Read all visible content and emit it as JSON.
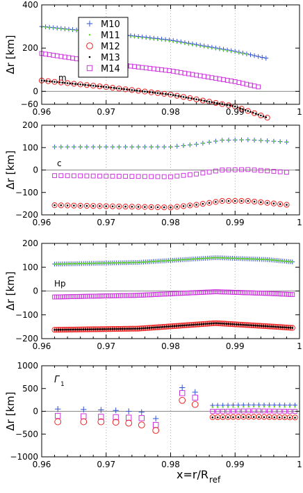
{
  "chart_data": [
    {
      "type": "scatter",
      "panel_label": "m",
      "xlabel_main": "x=r/R",
      "xlabel_sub": "ref",
      "ylabel": "Δr [km]",
      "xlim": [
        0.96,
        1.0
      ],
      "ylim": [
        -60,
        400
      ],
      "x_ticks": [
        "0.96",
        "0.97",
        "0.98",
        "0.99",
        "1"
      ],
      "y_ticks": [
        "−60",
        "0",
        "200",
        "400"
      ],
      "y_tick_values": [
        -60,
        0,
        200,
        400
      ],
      "grid": "dotted at major x ticks",
      "legend": [
        "M10",
        "M11",
        "M12",
        "M13",
        "M14"
      ],
      "legend_position": "top-left",
      "series": [
        {
          "name": "M10",
          "x_range": [
            0.96,
            0.995
          ],
          "x_step": 0.0006,
          "y": [
            [
              0.96,
              300
            ],
            [
              0.97,
              270
            ],
            [
              0.98,
              237
            ],
            [
              0.99,
              185
            ],
            [
              0.995,
              152
            ]
          ]
        },
        {
          "name": "M11",
          "x_range": [
            0.96,
            0.992
          ],
          "x_step": 0.0006,
          "y": [
            [
              0.96,
              298
            ],
            [
              0.97,
              266
            ],
            [
              0.98,
              232
            ],
            [
              0.99,
              181
            ],
            [
              0.992,
              170
            ]
          ]
        },
        {
          "name": "M12",
          "x_range": [
            0.96,
            0.995
          ],
          "x_step": 0.001,
          "y": [
            [
              0.96,
              50
            ],
            [
              0.97,
              20
            ],
            [
              0.98,
              -15
            ],
            [
              0.99,
              -70
            ],
            [
              0.995,
              -122
            ]
          ]
        },
        {
          "name": "M13",
          "x_range": [
            0.96,
            0.995
          ],
          "x_step": 0.0004,
          "y": [
            [
              0.96,
              50
            ],
            [
              0.97,
              20
            ],
            [
              0.98,
              -15
            ],
            [
              0.99,
              -70
            ],
            [
              0.995,
              -122
            ]
          ]
        },
        {
          "name": "M14",
          "x_range": [
            0.96,
            0.994
          ],
          "x_step": 0.0006,
          "y": [
            [
              0.96,
              175
            ],
            [
              0.97,
              130
            ],
            [
              0.98,
              95
            ],
            [
              0.99,
              45
            ],
            [
              0.994,
              18
            ]
          ]
        }
      ]
    },
    {
      "type": "scatter",
      "panel_label": "c",
      "xlabel_main": "x=r/R",
      "xlabel_sub": "ref",
      "ylabel": "Δr [km]",
      "xlim": [
        0.96,
        1.0
      ],
      "ylim": [
        -200,
        200
      ],
      "x_ticks": [
        "0.96",
        "0.97",
        "0.98",
        "0.99",
        "1"
      ],
      "y_ticks": [
        "−200",
        "−100",
        "0",
        "100",
        "200"
      ],
      "y_tick_values": [
        -200,
        -100,
        0,
        100,
        200
      ],
      "grid": "dotted at major x ticks",
      "series": [
        {
          "name": "M10",
          "x_range": [
            0.962,
            0.998
          ],
          "x_step": 0.001,
          "y": [
            [
              0.962,
              103
            ],
            [
              0.98,
              103
            ],
            [
              0.984,
              115
            ],
            [
              0.988,
              133
            ],
            [
              0.992,
              135
            ],
            [
              0.998,
              125
            ]
          ]
        },
        {
          "name": "M11",
          "x_range": [
            0.962,
            0.998
          ],
          "x_step": 0.001,
          "y": [
            [
              0.962,
              103
            ],
            [
              0.98,
              103
            ],
            [
              0.984,
              115
            ],
            [
              0.988,
              133
            ],
            [
              0.992,
              135
            ],
            [
              0.998,
              125
            ]
          ]
        },
        {
          "name": "M12",
          "x_range": [
            0.962,
            0.998
          ],
          "x_step": 0.001,
          "y": [
            [
              0.962,
              -157
            ],
            [
              0.98,
              -167
            ],
            [
              0.984,
              -155
            ],
            [
              0.988,
              -138
            ],
            [
              0.992,
              -138
            ],
            [
              0.998,
              -155
            ]
          ]
        },
        {
          "name": "M13",
          "x_range": [
            0.962,
            0.998
          ],
          "x_step": 0.001,
          "y": [
            [
              0.962,
              -157
            ],
            [
              0.98,
              -167
            ],
            [
              0.984,
              -155
            ],
            [
              0.988,
              -138
            ],
            [
              0.992,
              -138
            ],
            [
              0.998,
              -155
            ]
          ]
        },
        {
          "name": "M14",
          "x_range": [
            0.962,
            0.998
          ],
          "x_step": 0.001,
          "y": [
            [
              0.962,
              -25
            ],
            [
              0.98,
              -30
            ],
            [
              0.984,
              -18
            ],
            [
              0.988,
              0
            ],
            [
              0.992,
              2
            ],
            [
              0.998,
              -10
            ]
          ]
        }
      ]
    },
    {
      "type": "scatter",
      "panel_label": "Hp",
      "xlabel_main": "x=r/R",
      "xlabel_sub": "ref",
      "ylabel": "Δr [km]",
      "xlim": [
        0.96,
        1.0
      ],
      "ylim": [
        -200,
        200
      ],
      "x_ticks": [
        "0.96",
        "0.97",
        "0.98",
        "0.99",
        "1"
      ],
      "y_ticks": [
        "−200",
        "−100",
        "0",
        "100",
        "200"
      ],
      "y_tick_values": [
        -200,
        -100,
        0,
        100,
        200
      ],
      "grid": "dotted at major x ticks",
      "series": [
        {
          "name": "M10",
          "x_range": [
            0.962,
            0.999
          ],
          "x_step": 0.0003,
          "y": [
            [
              0.962,
              113
            ],
            [
              0.975,
              120
            ],
            [
              0.987,
              140
            ],
            [
              0.995,
              132
            ],
            [
              0.999,
              122
            ]
          ]
        },
        {
          "name": "M11",
          "x_range": [
            0.962,
            0.999
          ],
          "x_step": 0.0003,
          "y": [
            [
              0.962,
              113
            ],
            [
              0.975,
              120
            ],
            [
              0.987,
              140
            ],
            [
              0.995,
              132
            ],
            [
              0.999,
              122
            ]
          ]
        },
        {
          "name": "M12",
          "x_range": [
            0.962,
            0.999
          ],
          "x_step": 0.0003,
          "y": [
            [
              0.962,
              -163
            ],
            [
              0.975,
              -158
            ],
            [
              0.987,
              -135
            ],
            [
              0.995,
              -148
            ],
            [
              0.999,
              -155
            ]
          ]
        },
        {
          "name": "M13",
          "x_range": [
            0.962,
            0.999
          ],
          "x_step": 0.0003,
          "y": [
            [
              0.962,
              -163
            ],
            [
              0.975,
              -158
            ],
            [
              0.987,
              -135
            ],
            [
              0.995,
              -148
            ],
            [
              0.999,
              -155
            ]
          ]
        },
        {
          "name": "M14",
          "x_range": [
            0.962,
            0.999
          ],
          "x_step": 0.0003,
          "y": [
            [
              0.962,
              -25
            ],
            [
              0.975,
              -18
            ],
            [
              0.987,
              -3
            ],
            [
              0.995,
              -10
            ],
            [
              0.999,
              -15
            ]
          ]
        }
      ]
    },
    {
      "type": "scatter",
      "panel_label": "Γ",
      "panel_label_sub": "1",
      "xlabel_main": "x=r/R",
      "xlabel_sub": "ref",
      "ylabel": "Δr [km]",
      "xlim": [
        0.96,
        1.0
      ],
      "ylim": [
        -1000,
        1000
      ],
      "x_ticks": [
        "0.96",
        "0.97",
        "0.98",
        "0.99",
        "1"
      ],
      "y_ticks": [
        "−1000",
        "−500",
        "0",
        "500",
        "1000"
      ],
      "y_tick_values": [
        -1000,
        -500,
        0,
        500,
        1000
      ],
      "grid": "dotted at major x ticks",
      "series": [
        {
          "name": "M10",
          "x": [
            0.9625,
            0.9665,
            0.9692,
            0.9715,
            0.9735,
            0.9755,
            0.9777,
            0.9818,
            0.9838
          ],
          "y": [
            50,
            40,
            30,
            20,
            0,
            -20,
            -160,
            520,
            420
          ],
          "band": {
            "x_range": [
              0.9865,
              0.9995
            ],
            "x_step": 0.0008,
            "y": [
              [
                0.9865,
                130
              ],
              [
                0.993,
                140
              ],
              [
                0.9995,
                135
              ]
            ]
          }
        },
        {
          "name": "M11",
          "band": {
            "x_range": [
              0.9865,
              0.9995
            ],
            "x_step": 0.0008,
            "y": [
              [
                0.9865,
                90
              ],
              [
                0.993,
                100
              ],
              [
                0.9995,
                95
              ]
            ]
          }
        },
        {
          "name": "M12",
          "x": [
            0.9625,
            0.9665,
            0.9692,
            0.9715,
            0.9735,
            0.9755,
            0.9777,
            0.9818,
            0.9838
          ],
          "y": [
            -230,
            -230,
            -230,
            -240,
            -260,
            -300,
            -420,
            240,
            150
          ],
          "band": {
            "x_range": [
              0.9865,
              0.9995
            ],
            "x_step": 0.0008,
            "y": [
              [
                0.9865,
                -130
              ],
              [
                0.993,
                -120
              ],
              [
                0.9995,
                -135
              ]
            ]
          }
        },
        {
          "name": "M13",
          "band": {
            "x_range": [
              0.9865,
              0.9995
            ],
            "x_step": 0.0008,
            "y": [
              [
                0.9865,
                -135
              ],
              [
                0.993,
                -125
              ],
              [
                0.9995,
                -140
              ]
            ]
          }
        },
        {
          "name": "M14",
          "x": [
            0.9625,
            0.9665,
            0.9692,
            0.9715,
            0.9735,
            0.9755,
            0.9777,
            0.9818,
            0.9838
          ],
          "y": [
            -100,
            -110,
            -120,
            -130,
            -140,
            -150,
            -300,
            400,
            300
          ],
          "band": {
            "x_range": [
              0.9865,
              0.9995
            ],
            "x_step": 0.0008,
            "y": [
              [
                0.9865,
                0
              ],
              [
                0.993,
                10
              ],
              [
                0.9995,
                0
              ]
            ]
          }
        }
      ]
    }
  ],
  "style": {
    "colors": {
      "M10": "#3050d0",
      "M11": "#66dd22",
      "M12": "#ee2222",
      "M13": "#000000",
      "M14": "#cc33dd"
    },
    "zero_line": "#888888",
    "grid": "#999999"
  }
}
